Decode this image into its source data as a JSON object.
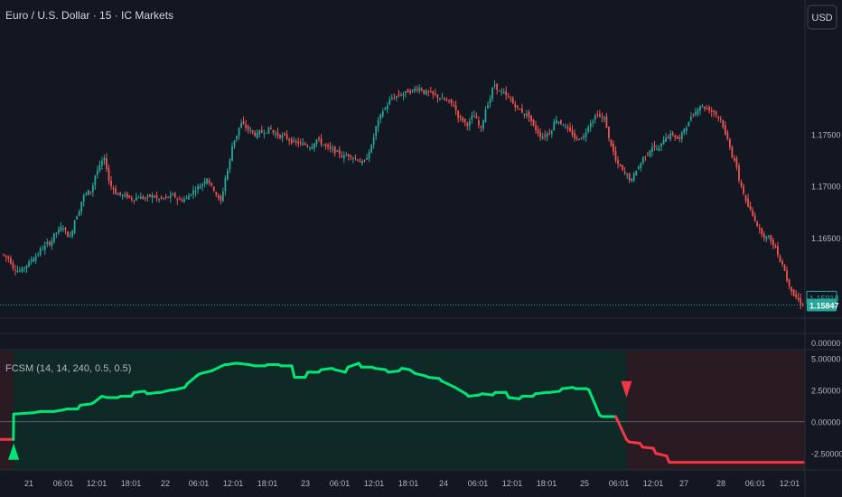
{
  "header": {
    "symbol_title": "Euro / U.S. Dollar · 15 · IC Markets",
    "currency_button": "USD"
  },
  "colors": {
    "background": "#131722",
    "up": "#26a69a",
    "down": "#ef5350",
    "indicator_bull": "#00e676",
    "indicator_bear": "#f23645",
    "bull_zone": "#0f2a26",
    "bear_zone": "#2a1a22",
    "grid": "#2a2e39",
    "text": "#b2b5be"
  },
  "chart_data": [
    {
      "type": "candlestick",
      "title": "Euro / U.S. Dollar · 15 · IC Markets",
      "ylim": [
        1.1572,
        1.188
      ],
      "y_ticks": [
        "1.17500",
        "1.17000",
        "1.16500"
      ],
      "price_labels": [
        {
          "text": "1.15918",
          "value": 1.15918,
          "kind": "outline"
        },
        {
          "text": "1.15847",
          "value": 1.15847,
          "kind": "filled"
        }
      ],
      "last_price_line": 1.15847,
      "closes": [
        1.163,
        1.162,
        1.1618,
        1.1625,
        1.1632,
        1.164,
        1.1645,
        1.1655,
        1.166,
        1.165,
        1.1672,
        1.169,
        1.1695,
        1.1715,
        1.1725,
        1.17,
        1.1692,
        1.169,
        1.1688,
        1.169,
        1.1688,
        1.169,
        1.1687,
        1.1688,
        1.169,
        1.1686,
        1.1688,
        1.1695,
        1.17,
        1.1708,
        1.1697,
        1.1685,
        1.1715,
        1.1745,
        1.176,
        1.1755,
        1.175,
        1.1752,
        1.1755,
        1.175,
        1.1748,
        1.1745,
        1.1742,
        1.174,
        1.1738,
        1.1745,
        1.174,
        1.1735,
        1.1732,
        1.1728,
        1.173,
        1.1726,
        1.1722,
        1.1738,
        1.1762,
        1.1775,
        1.1785,
        1.1788,
        1.179,
        1.1792,
        1.1795,
        1.179,
        1.1788,
        1.1785,
        1.1782,
        1.1778,
        1.1765,
        1.176,
        1.1768,
        1.1755,
        1.178,
        1.1798,
        1.179,
        1.1785,
        1.1778,
        1.1772,
        1.1768,
        1.1755,
        1.1748,
        1.1752,
        1.1765,
        1.176,
        1.1752,
        1.1745,
        1.1748,
        1.1762,
        1.177,
        1.1765,
        1.174,
        1.172,
        1.1712,
        1.1705,
        1.1718,
        1.173,
        1.1738,
        1.1735,
        1.1748,
        1.175,
        1.1745,
        1.1758,
        1.177,
        1.1778,
        1.1775,
        1.1772,
        1.1765,
        1.1745,
        1.1725,
        1.17,
        1.168,
        1.1668,
        1.1655,
        1.165,
        1.164,
        1.1625,
        1.1605,
        1.1592,
        1.1585
      ],
      "x_ticks": [
        "21",
        "06:01",
        "12:01",
        "18:01",
        "22",
        "06:01",
        "12:01",
        "18:01",
        "23",
        "06:01",
        "12:01",
        "18:01",
        "24",
        "06:01",
        "12:01",
        "18:01",
        "25",
        "06:01",
        "12:01",
        "27",
        "28",
        "06:01",
        "12:01"
      ]
    },
    {
      "type": "line",
      "title": "FCSM (14, 14, 240, 0.5, 0.5)",
      "ylim": [
        -3.8,
        5.6
      ],
      "y_ticks": [
        "5.00000",
        "2.50000",
        "0.00000",
        "-2.50000"
      ],
      "top_separator_label": "0.00000",
      "series": [
        {
          "x": [
            0,
            1,
            1.02,
            2.5,
            3,
            4,
            4.6,
            5,
            5.8,
            6,
            6.8,
            7,
            7.6,
            8,
            8.8,
            9,
            9.8,
            10,
            10.8,
            11,
            11.8,
            12,
            12.8,
            13,
            13.8,
            14,
            14.8,
            15,
            15.8,
            16,
            16.8,
            17,
            17.6,
            17.7,
            18.6,
            19,
            19.8,
            20,
            20.8,
            21,
            21.8,
            22,
            22.8,
            23,
            23.8,
            24,
            24.8,
            25,
            25.8,
            26,
            26.8,
            27,
            27.8,
            28,
            28.8,
            29,
            29.8,
            30,
            30.6,
            31,
            31.8,
            32,
            32.8,
            33,
            33.8,
            34,
            34.8,
            35,
            35.8,
            36,
            36.8,
            37,
            37.8,
            38,
            38.8,
            39,
            39.8,
            40,
            40.8,
            41,
            41.8,
            42,
            42.8,
            43,
            43.8,
            44,
            44.8,
            45,
            45.8,
            46,
            46.8,
            47,
            47.8,
            48,
            48.8,
            49,
            49.8,
            50,
            50.8,
            51,
            51.8,
            52,
            52.8,
            53,
            53.8,
            54,
            54.8,
            55,
            55.8,
            56,
            56.6,
            57,
            57.8,
            58,
            58.6,
            59,
            60
          ],
          "values": [
            -1.4,
            -1.4,
            0.6,
            0.7,
            0.8,
            0.8,
            0.9,
            1.0,
            1.0,
            1.3,
            1.4,
            1.5,
            2.0,
            1.9,
            1.9,
            2.0,
            2.0,
            2.3,
            2.4,
            2.2,
            2.3,
            2.3,
            2.5,
            2.5,
            2.7,
            3.0,
            3.7,
            3.8,
            4.0,
            4.1,
            4.5,
            4.5,
            4.6,
            4.6,
            4.5,
            4.4,
            4.4,
            4.5,
            4.5,
            4.4,
            4.4,
            3.5,
            3.5,
            3.9,
            3.9,
            4.1,
            4.2,
            4.1,
            3.9,
            4.3,
            4.6,
            4.3,
            4.3,
            4.2,
            4.1,
            3.9,
            4.0,
            4.2,
            4.1,
            3.8,
            3.6,
            3.5,
            3.4,
            3.2,
            2.8,
            2.7,
            2.2,
            2.0,
            2.1,
            2.2,
            2.1,
            2.3,
            2.3,
            1.9,
            1.8,
            2.0,
            2.0,
            2.2,
            2.3,
            2.3,
            2.4,
            2.6,
            2.7,
            2.6,
            2.6,
            2.5,
            0.5,
            0.4,
            0.4,
            0.4,
            -1.4,
            -1.6,
            -1.7,
            -2.0,
            -2.1,
            -2.5,
            -2.7,
            -3.2,
            -3.2,
            -3.2,
            -3.2,
            -3.2,
            -3.2,
            -3.2,
            -3.2,
            -3.2,
            -3.2,
            -3.2,
            -3.2,
            -3.2,
            -3.2,
            -3.2,
            -3.2,
            -3.2,
            -3.2,
            -3.2,
            -3.2
          ]
        }
      ],
      "bull_signal": {
        "marker": "up-triangle"
      },
      "bear_signal": {
        "marker": "down-triangle"
      }
    }
  ]
}
